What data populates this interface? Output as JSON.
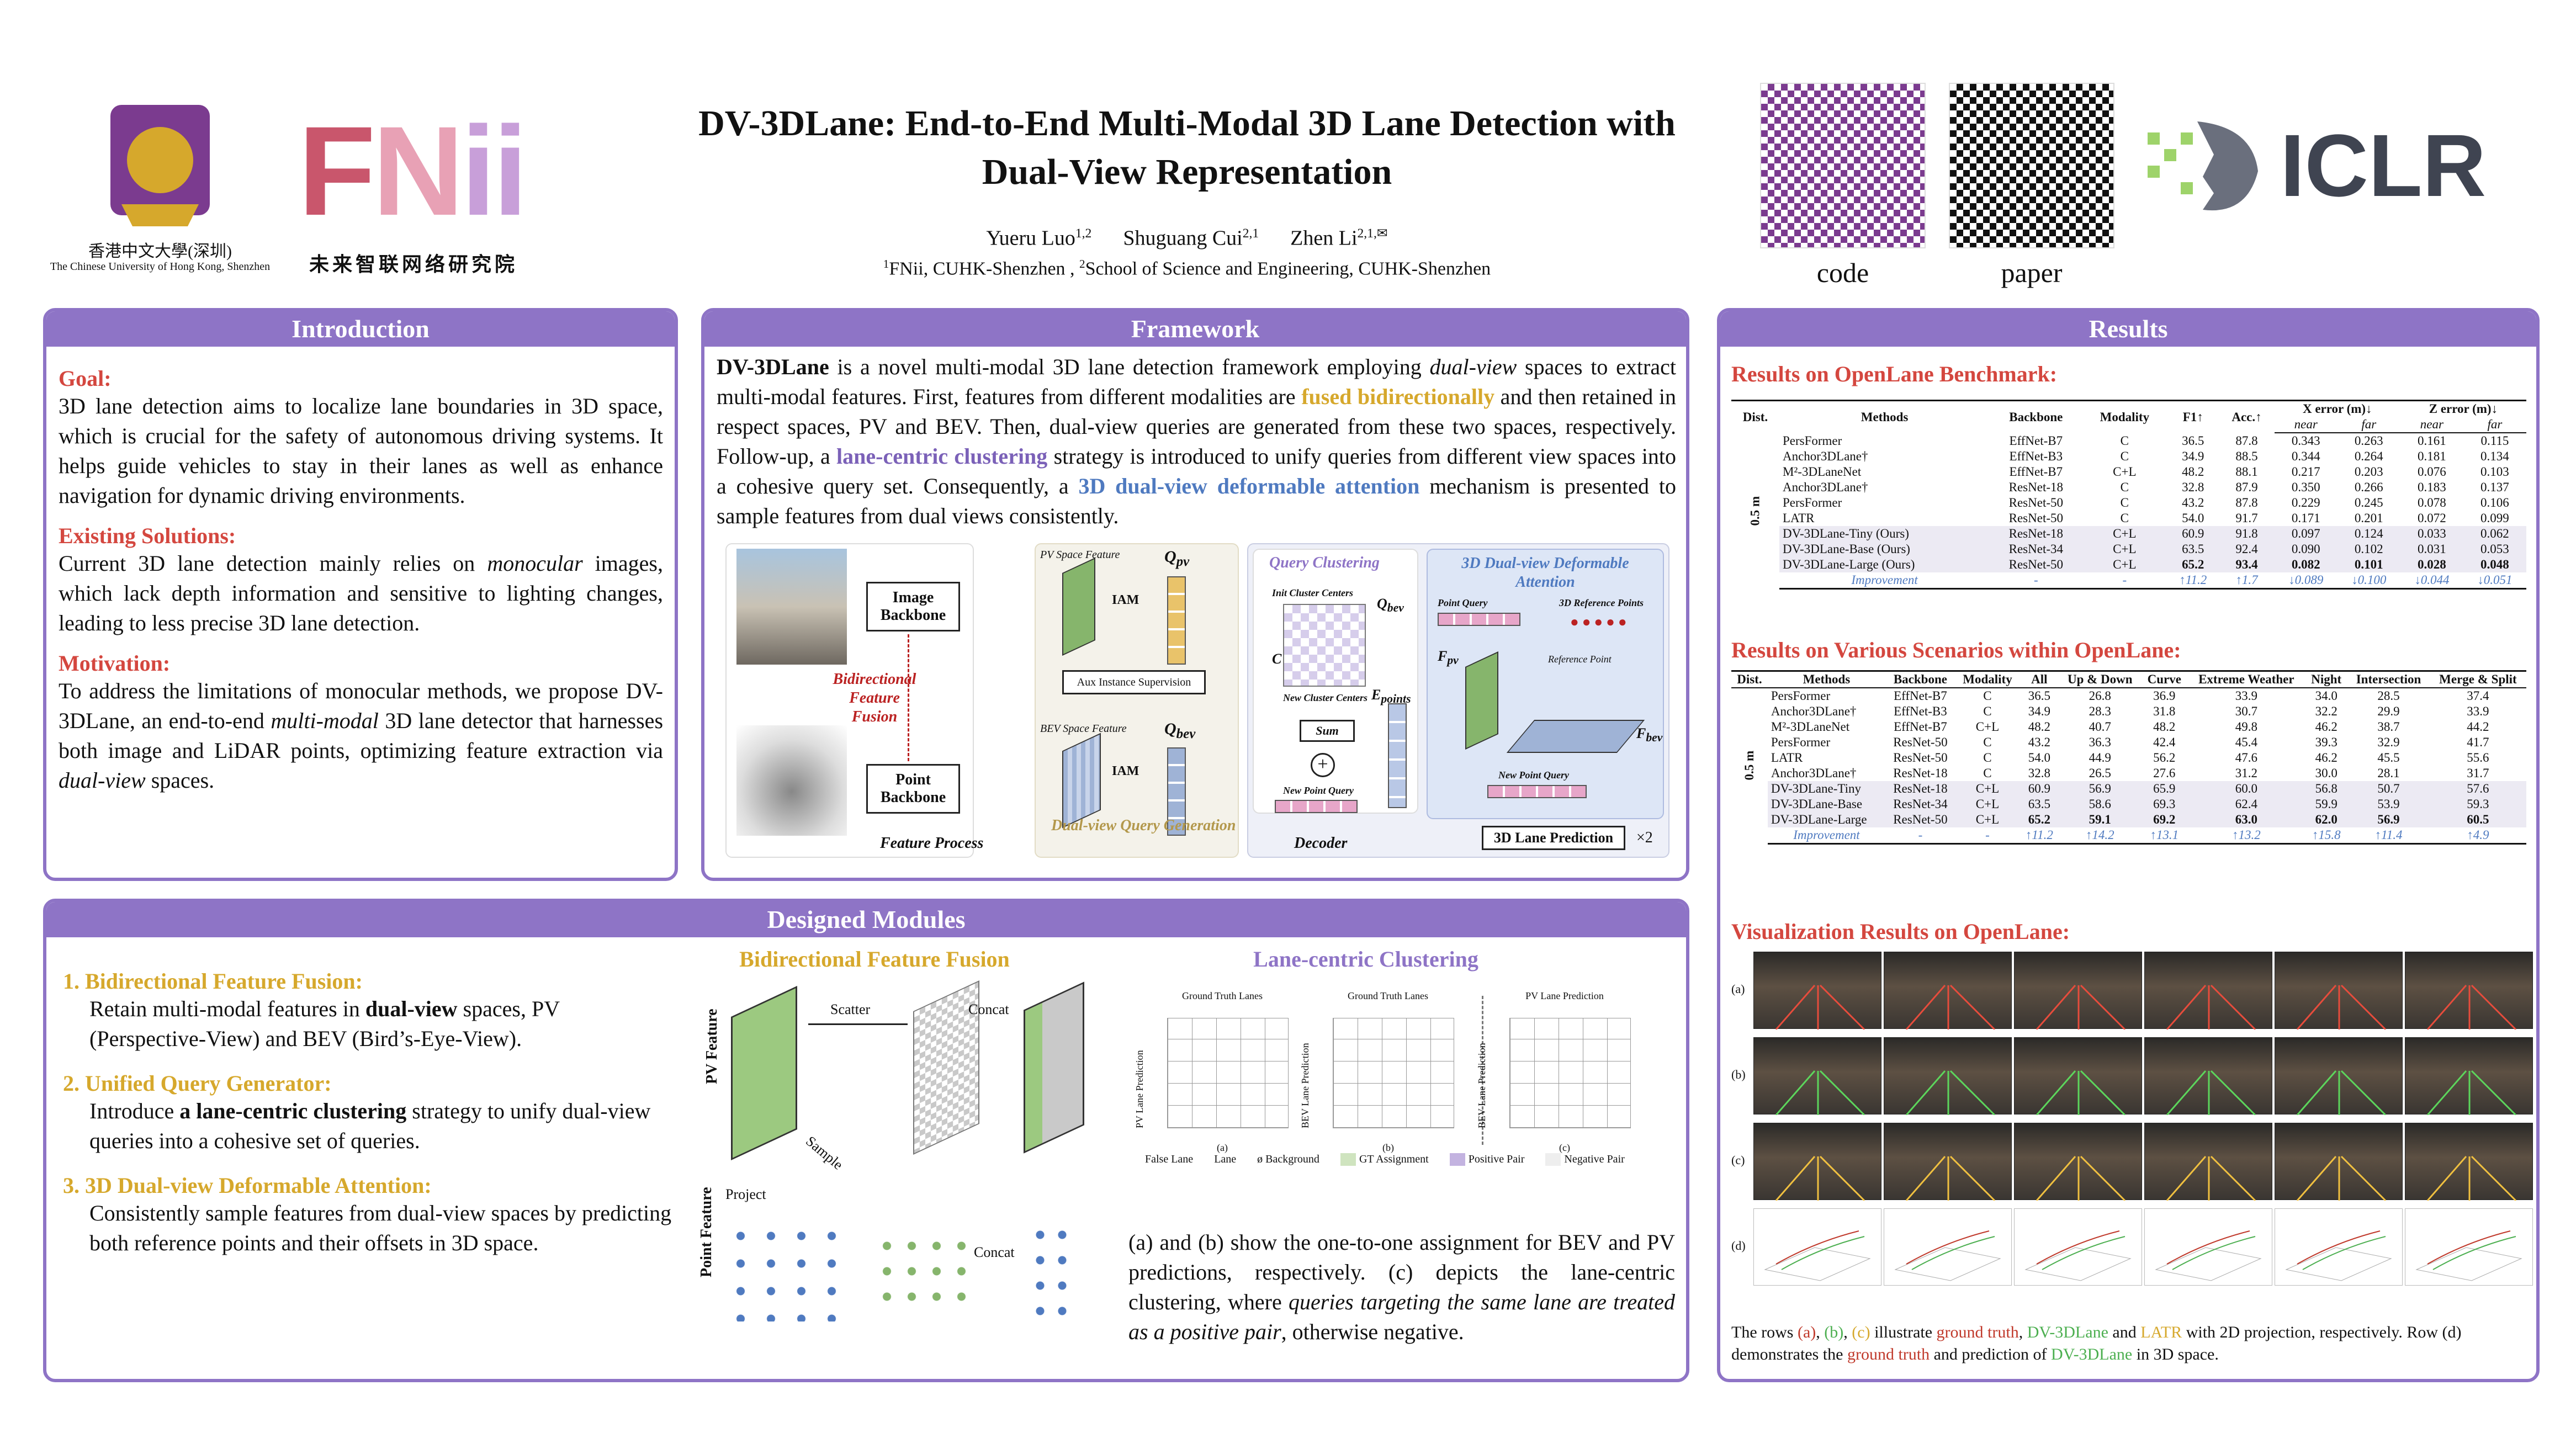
{
  "header": {
    "title_line1": "DV-3DLane: End-to-End Multi-Modal 3D Lane Detection with",
    "title_line2": "Dual-View Representation",
    "authors": [
      {
        "name": "Yueru Luo",
        "sup": "1,2"
      },
      {
        "name": "Shuguang Cui",
        "sup": "2,1"
      },
      {
        "name": "Zhen Li",
        "sup": "2,1,✉"
      }
    ],
    "affil_1_sup": "1",
    "affil_1": "FNii, CUHK-Shenzhen ,",
    "affil_2_sup": "2",
    "affil_2": "School of Science and Engineering, CUHK-Shenzhen",
    "cuhk_name_cn": "香港中文大學(深圳)",
    "cuhk_name_en": "The Chinese University of Hong Kong, Shenzhen",
    "fnii_logo_text": "FNii",
    "fnii_cn": "未来智联网络研究院",
    "code_label": "code",
    "paper_label": "paper",
    "iclr_text": "ICLR"
  },
  "introduction": {
    "heading": "Introduction",
    "goal_title": "Goal:",
    "goal_text": "3D lane detection aims to localize lane boundaries in 3D space, which is crucial for the safety of autonomous driving systems. It helps guide vehicles to stay in their lanes as well as enhance navigation for dynamic driving environments.",
    "existing_title": "Existing Solutions:",
    "existing_text_a": "Current 3D lane detection mainly relies on ",
    "existing_text_em": "monocular",
    "existing_text_b": " images, which lack depth information and sensitive to lighting changes, leading to less precise 3D lane detection.",
    "motivation_title": "Motivation:",
    "motivation_text_a": "To address the limitations of monocular methods, we propose DV-3DLane, an end-to-end ",
    "motivation_text_em": "multi-modal",
    "motivation_text_b": " 3D lane detector that harnesses both image and LiDAR points, optimizing feature extraction via ",
    "motivation_text_em2": "dual-view",
    "motivation_text_c": " spaces."
  },
  "framework": {
    "heading": "Framework",
    "p_bold": "DV-3DLane",
    "p1": " is a novel multi-modal 3D lane detection framework employing ",
    "p1_em": "dual-view",
    "p2": " spaces to extract multi-modal features. First, features from different modalities are ",
    "p2_gold": "fused bidirectionally",
    "p3": " and then retained in respect spaces, PV and BEV. Then, dual-view queries are generated from these two spaces, respectively. Follow-up, a ",
    "p3_purple": "lane-centric clustering",
    "p4": " strategy is introduced to unify queries from different view spaces into a cohesive query set. Consequently, a ",
    "p4_blue": "3D dual-view deformable attention",
    "p5": " mechanism is presented to sample features from dual views consistently.",
    "fig": {
      "image_backbone": "Image Backbone",
      "point_backbone": "Point Backbone",
      "bff": "Bidirectional Feature Fusion",
      "pv_space": "PV Space Feature",
      "bev_space": "BEV Space Feature",
      "iam": "IAM",
      "aux": "Aux Instance Supervision",
      "q_pv": "Q",
      "q_pv_sub": "pv",
      "q_bev_sub": "bev",
      "feature_process": "Feature Process",
      "dvqg": "Dual-view Query Generation",
      "query_clustering": "Query Clustering",
      "init_cluster": "Init Cluster Centers",
      "new_cluster": "New Cluster Centers",
      "e_points": "E",
      "e_points_sub": "points",
      "sum": "Sum",
      "new_point_query": "New Point Query",
      "decoder": "Decoder",
      "dda_title": "3D Dual-view Deformable Attention",
      "point_query": "Point Query",
      "ref_points_3d": "3D Reference Points",
      "reference_point": "Reference Point",
      "f_pv": "F",
      "f_bev": "F",
      "new_point_query2": "New Point Query",
      "lane_pred": "3D Lane Prediction",
      "times2": "×2",
      "q_label": "Q",
      "c_label": "C"
    }
  },
  "results": {
    "heading": "Results",
    "openlane_title": "Results on OpenLane Benchmark:",
    "t1_headers": [
      "Dist.",
      "Methods",
      "Backbone",
      "Modality",
      "F1↑",
      "Acc.↑",
      "X error (m)↓",
      "Z error (m)↓"
    ],
    "t1_subheaders": [
      "near",
      "far",
      "near",
      "far"
    ],
    "t1_dist": "0.5 m",
    "t1_rows": [
      [
        "PersFormer",
        "EffNet-B7",
        "C",
        "36.5",
        "87.8",
        "0.343",
        "0.263",
        "0.161",
        "0.115"
      ],
      [
        "Anchor3DLane†",
        "EffNet-B3",
        "C",
        "34.9",
        "88.5",
        "0.344",
        "0.264",
        "0.181",
        "0.134"
      ],
      [
        "M²-3DLaneNet",
        "EffNet-B7",
        "C+L",
        "48.2",
        "88.1",
        "0.217",
        "0.203",
        "0.076",
        "0.103"
      ],
      [
        "Anchor3DLane†",
        "ResNet-18",
        "C",
        "32.8",
        "87.9",
        "0.350",
        "0.266",
        "0.183",
        "0.137"
      ],
      [
        "PersFormer",
        "ResNet-50",
        "C",
        "43.2",
        "87.8",
        "0.229",
        "0.245",
        "0.078",
        "0.106"
      ],
      [
        "LATR",
        "ResNet-50",
        "C",
        "54.0",
        "91.7",
        "0.171",
        "0.201",
        "0.072",
        "0.099"
      ],
      [
        "DV-3DLane-Tiny (Ours)",
        "ResNet-18",
        "C+L",
        "60.9",
        "91.8",
        "0.097",
        "0.124",
        "0.033",
        "0.062"
      ],
      [
        "DV-3DLane-Base (Ours)",
        "ResNet-34",
        "C+L",
        "63.5",
        "92.4",
        "0.090",
        "0.102",
        "0.031",
        "0.053"
      ],
      [
        "DV-3DLane-Large (Ours)",
        "ResNet-50",
        "C+L",
        "65.2",
        "93.4",
        "0.082",
        "0.101",
        "0.028",
        "0.048"
      ]
    ],
    "t1_impr": [
      "Improvement",
      "-",
      "-",
      "↑11.2",
      "↑1.7",
      "↓0.089",
      "↓0.100",
      "↓0.044",
      "↓0.051"
    ],
    "scenario_title": "Results on Various Scenarios within OpenLane:",
    "t2_headers": [
      "Dist.",
      "Methods",
      "Backbone",
      "Modality",
      "All",
      "Up & Down",
      "Curve",
      "Extreme Weather",
      "Night",
      "Intersection",
      "Merge & Split"
    ],
    "t2_dist": "0.5 m",
    "t2_rows": [
      [
        "PersFormer",
        "EffNet-B7",
        "C",
        "36.5",
        "26.8",
        "36.9",
        "33.9",
        "34.0",
        "28.5",
        "37.4"
      ],
      [
        "Anchor3DLane†",
        "EffNet-B3",
        "C",
        "34.9",
        "28.3",
        "31.8",
        "30.7",
        "32.2",
        "29.9",
        "33.9"
      ],
      [
        "M²-3DLaneNet",
        "EffNet-B7",
        "C+L",
        "48.2",
        "40.7",
        "48.2",
        "49.8",
        "46.2",
        "38.7",
        "44.2"
      ],
      [
        "PersFormer",
        "ResNet-50",
        "C",
        "43.2",
        "36.3",
        "42.4",
        "45.4",
        "39.3",
        "32.9",
        "41.7"
      ],
      [
        "LATR",
        "ResNet-50",
        "C",
        "54.0",
        "44.9",
        "56.2",
        "47.6",
        "46.2",
        "45.5",
        "55.6"
      ],
      [
        "Anchor3DLane†",
        "ResNet-18",
        "C",
        "32.8",
        "26.5",
        "27.6",
        "31.2",
        "30.0",
        "28.1",
        "31.7"
      ],
      [
        "DV-3DLane-Tiny",
        "ResNet-18",
        "C+L",
        "60.9",
        "56.9",
        "65.9",
        "60.0",
        "56.8",
        "50.7",
        "57.6"
      ],
      [
        "DV-3DLane-Base",
        "ResNet-34",
        "C+L",
        "63.5",
        "58.6",
        "69.3",
        "62.4",
        "59.9",
        "53.9",
        "59.3"
      ],
      [
        "DV-3DLane-Large",
        "ResNet-50",
        "C+L",
        "65.2",
        "59.1",
        "69.2",
        "63.0",
        "62.0",
        "56.9",
        "60.5"
      ]
    ],
    "t2_impr": [
      "Improvement",
      "-",
      "-",
      "↑11.2",
      "↑14.2",
      "↑13.1",
      "↑13.2",
      "↑15.8",
      "↑11.4",
      "↑4.9"
    ],
    "viz_title": "Visualization Results on OpenLane:",
    "viz_rows": [
      "(a)",
      "(b)",
      "(c)",
      "(d)"
    ],
    "caption_a": "The rows ",
    "caption_ra": "(a)",
    "caption_rb": "(b)",
    "caption_rc": "(c)",
    "caption_b": " illustrate ",
    "caption_gt": "ground truth",
    "caption_dv": "DV-3DLane",
    "caption_and": " and ",
    "caption_latr": "LATR",
    "caption_c": " with 2D projection,  respectively. Row (d) demonstrates the ",
    "caption_gt2": "ground truth",
    "caption_d": "  and prediction of ",
    "caption_dv2": "DV-3DLane",
    "caption_e": " in 3D space."
  },
  "modules": {
    "heading": "Designed Modules",
    "items": [
      {
        "num": "1.",
        "title": "Bidirectional Feature Fusion:",
        "text_a": "Retain multi-modal features in ",
        "text_b": "dual-view",
        "text_c": " spaces, PV (Perspective-View) and BEV (Bird’s-Eye-View)."
      },
      {
        "num": "2.",
        "title": "Unified Query Generator:",
        "text_a": "Introduce ",
        "text_b": "a lane-centric clustering",
        "text_c": " strategy to unify dual-view queries into a cohesive set of queries."
      },
      {
        "num": "3.",
        "title": "3D Dual-view Deformable Attention:",
        "text_a": "Consistently sample features from dual-view spaces by predicting both reference points and their offsets in 3D space.",
        "text_b": "",
        "text_c": ""
      }
    ],
    "bff_title": "Bidirectional Feature Fusion",
    "lcc_title": "Lane-centric Clustering",
    "pv_feature": "PV Feature",
    "point_feature": "Point Feature",
    "scatter": "Scatter",
    "concat": "Concat",
    "concat2": "Concat",
    "sample": "Sample",
    "project": "Project",
    "gt_lanes": "Ground Truth Lanes",
    "pv_lane_pred": "PV Lane Prediction",
    "pv_lane_pred_axis": "PV Lane Prediction",
    "bev_lane_pred_axis": "BEV Lane Prediction",
    "sub_a": "(a)",
    "sub_b": "(b)",
    "sub_c": "(c)",
    "legend": [
      "False Lane",
      "Lane",
      "ø Background",
      "GT Assignment",
      "Positive Pair",
      "Negative Pair"
    ],
    "caption_a": "(a) and (b) show the one-to-one assignment for BEV and PV predictions, respectively. (c) depicts the lane-centric clustering, where ",
    "caption_em": "queries targeting the same lane are treated as a positive pair",
    "caption_b": ", otherwise negative."
  }
}
